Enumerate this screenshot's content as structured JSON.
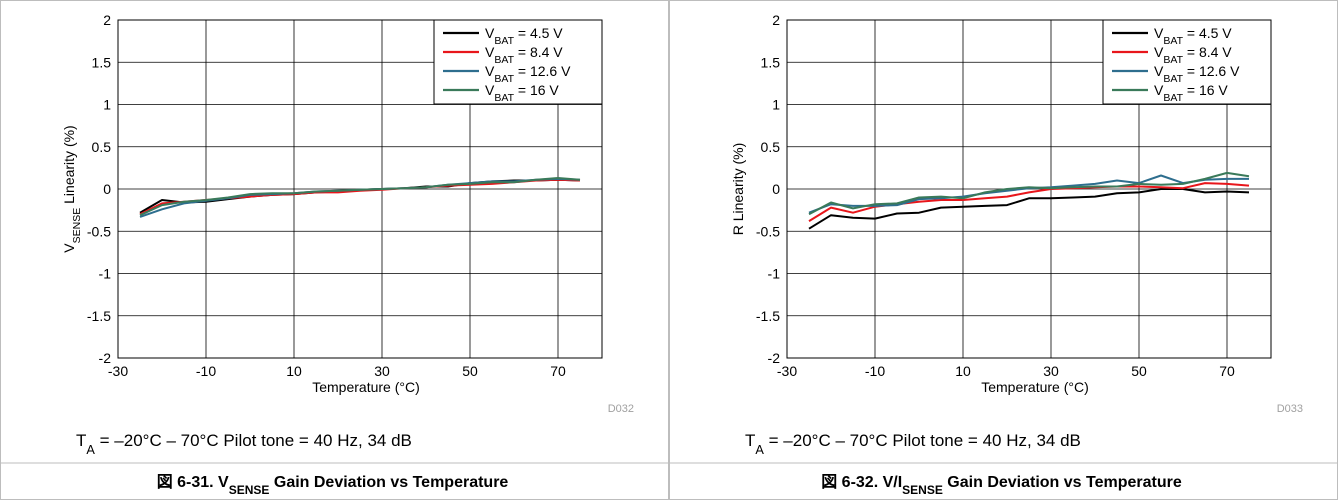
{
  "chart_data": [
    {
      "type": "line",
      "ylabel_main": "V",
      "ylabel_sub": "SENSE",
      "ylabel_rest": " Linearity (%)",
      "xlabel": "Temperature (°C)",
      "xlim": [
        -30,
        80
      ],
      "ylim": [
        -2,
        2
      ],
      "xticks": [
        -30,
        -10,
        10,
        30,
        50,
        70
      ],
      "yticks": [
        2,
        1.5,
        1,
        0.5,
        0,
        -0.5,
        -1,
        -1.5,
        -2
      ],
      "grid": true,
      "legend_position": "top-right",
      "code": "D032",
      "condition_prefix": "T",
      "condition_sub": "A",
      "condition_rest": " = –20°C – 70°C   Pilot tone = 40 Hz, 34 dB",
      "caption_prefix": "図 6-31. V",
      "caption_sub": "SENSE",
      "caption_rest": " Gain Deviation vs Temperature",
      "series": [
        {
          "legend_main": "V",
          "legend_sub": "BAT",
          "legend_rest": " = 4.5 V",
          "color": "#000000",
          "x": [
            -25,
            -20,
            -15,
            -10,
            -5,
            0,
            5,
            10,
            15,
            20,
            25,
            30,
            35,
            40,
            45,
            50,
            55,
            60,
            65,
            70,
            75
          ],
          "y": [
            -0.28,
            -0.13,
            -0.16,
            -0.15,
            -0.12,
            -0.09,
            -0.07,
            -0.06,
            -0.04,
            -0.03,
            -0.01,
            0,
            0.01,
            0.03,
            0.03,
            0.07,
            0.09,
            0.1,
            0.1,
            0.11,
            0.1
          ]
        },
        {
          "legend_main": "V",
          "legend_sub": "BAT",
          "legend_rest": " = 8.4 V",
          "color": "#e8161b",
          "x": [
            -25,
            -20,
            -15,
            -10,
            -5,
            0,
            5,
            10,
            15,
            20,
            25,
            30,
            35,
            40,
            45,
            50,
            55,
            60,
            65,
            70,
            75
          ],
          "y": [
            -0.3,
            -0.17,
            -0.15,
            -0.13,
            -0.11,
            -0.09,
            -0.07,
            -0.06,
            -0.04,
            -0.04,
            -0.02,
            -0.01,
            0.01,
            0.02,
            0.04,
            0.05,
            0.06,
            0.08,
            0.1,
            0.11,
            0.1
          ]
        },
        {
          "legend_main": "V",
          "legend_sub": "BAT",
          "legend_rest": " = 12.6 V",
          "color": "#2e6e8e",
          "x": [
            -25,
            -20,
            -15,
            -10,
            -5,
            0,
            5,
            10,
            15,
            20,
            25,
            30,
            35,
            40,
            45,
            50,
            55,
            60,
            65,
            70,
            75
          ],
          "y": [
            -0.33,
            -0.24,
            -0.17,
            -0.14,
            -0.11,
            -0.07,
            -0.06,
            -0.05,
            -0.03,
            -0.02,
            -0.01,
            0,
            0.01,
            0.02,
            0.05,
            0.07,
            0.09,
            0.09,
            0.11,
            0.12,
            0.11
          ]
        },
        {
          "legend_main": "V",
          "legend_sub": "BAT",
          "legend_rest": " = 16 V",
          "color": "#3a7a5a",
          "x": [
            -25,
            -20,
            -15,
            -10,
            -5,
            0,
            5,
            10,
            15,
            20,
            25,
            30,
            35,
            40,
            45,
            50,
            55,
            60,
            65,
            70,
            75
          ],
          "y": [
            -0.31,
            -0.19,
            -0.15,
            -0.13,
            -0.1,
            -0.06,
            -0.05,
            -0.05,
            -0.03,
            -0.02,
            -0.01,
            0,
            0.01,
            0.02,
            0.05,
            0.06,
            0.08,
            0.08,
            0.11,
            0.13,
            0.11
          ]
        }
      ]
    },
    {
      "type": "line",
      "ylabel_main": "R Linearity (%)",
      "ylabel_sub": "",
      "ylabel_rest": "",
      "xlabel": "Temperature (°C)",
      "xlim": [
        -30,
        80
      ],
      "ylim": [
        -2,
        2
      ],
      "xticks": [
        -30,
        -10,
        10,
        30,
        50,
        70
      ],
      "yticks": [
        2,
        1.5,
        1,
        0.5,
        0,
        -0.5,
        -1,
        -1.5,
        -2
      ],
      "grid": true,
      "legend_position": "top-right",
      "code": "D033",
      "condition_prefix": "T",
      "condition_sub": "A",
      "condition_rest": " = –20°C – 70°C   Pilot tone = 40 Hz, 34 dB",
      "caption_prefix": "図 6-32. V/I",
      "caption_sub": "SENSE",
      "caption_rest": " Gain Deviation vs Temperature",
      "series": [
        {
          "legend_main": "V",
          "legend_sub": "BAT",
          "legend_rest": " = 4.5 V",
          "color": "#000000",
          "x": [
            -25,
            -20,
            -15,
            -10,
            -5,
            0,
            5,
            10,
            15,
            20,
            25,
            30,
            35,
            40,
            45,
            50,
            55,
            60,
            65,
            70,
            75
          ],
          "y": [
            -0.47,
            -0.31,
            -0.34,
            -0.35,
            -0.29,
            -0.28,
            -0.22,
            -0.21,
            -0.2,
            -0.19,
            -0.11,
            -0.11,
            -0.1,
            -0.09,
            -0.05,
            -0.04,
            0,
            0,
            -0.04,
            -0.03,
            -0.04
          ]
        },
        {
          "legend_main": "V",
          "legend_sub": "BAT",
          "legend_rest": " = 8.4 V",
          "color": "#e8161b",
          "x": [
            -25,
            -20,
            -15,
            -10,
            -5,
            0,
            5,
            10,
            15,
            20,
            25,
            30,
            35,
            40,
            45,
            50,
            55,
            60,
            65,
            70,
            75
          ],
          "y": [
            -0.38,
            -0.22,
            -0.28,
            -0.21,
            -0.18,
            -0.15,
            -0.13,
            -0.13,
            -0.11,
            -0.09,
            -0.04,
            0,
            0.01,
            0.02,
            0.03,
            0.03,
            0.02,
            0.01,
            0.07,
            0.06,
            0.04
          ]
        },
        {
          "legend_main": "V",
          "legend_sub": "BAT",
          "legend_rest": " = 12.6 V",
          "color": "#2e6e8e",
          "x": [
            -25,
            -20,
            -15,
            -10,
            -5,
            0,
            5,
            10,
            15,
            20,
            25,
            30,
            35,
            40,
            45,
            50,
            55,
            60,
            65,
            70,
            75
          ],
          "y": [
            -0.28,
            -0.18,
            -0.2,
            -0.2,
            -0.19,
            -0.12,
            -0.11,
            -0.09,
            -0.05,
            -0.02,
            0.01,
            0.02,
            0.04,
            0.06,
            0.1,
            0.07,
            0.16,
            0.07,
            0.11,
            0.12,
            0.12
          ]
        },
        {
          "legend_main": "V",
          "legend_sub": "BAT",
          "legend_rest": " = 16 V",
          "color": "#3a7a5a",
          "x": [
            -25,
            -20,
            -15,
            -10,
            -5,
            0,
            5,
            10,
            15,
            20,
            25,
            30,
            35,
            40,
            45,
            50,
            55,
            60,
            65,
            70,
            75
          ],
          "y": [
            -0.3,
            -0.16,
            -0.23,
            -0.18,
            -0.17,
            -0.1,
            -0.09,
            -0.11,
            -0.04,
            0,
            0.02,
            0.01,
            0.02,
            0.03,
            0.03,
            0.06,
            0.05,
            0.06,
            0.12,
            0.19,
            0.15
          ]
        }
      ]
    }
  ]
}
